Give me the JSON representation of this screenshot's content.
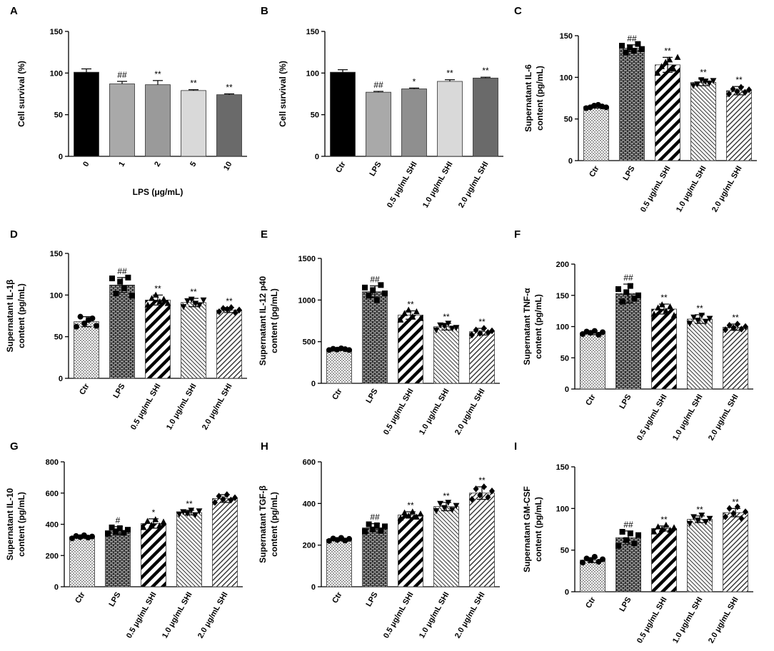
{
  "figure_title": "Figure panels A–I",
  "chart_data": [
    {
      "panel": "A",
      "type": "bar",
      "ylabel_lines": [
        "Cell survival (%)"
      ],
      "xlabel": "LPS (μg/mL)",
      "categories": [
        "0",
        "1",
        "2",
        "5",
        "10"
      ],
      "values": [
        101,
        87,
        86,
        79,
        74
      ],
      "errors": [
        4,
        3,
        5,
        1,
        1
      ],
      "annotations": [
        "",
        "##",
        "**",
        "**",
        "**"
      ],
      "yticks": [
        0,
        50,
        100,
        150
      ],
      "ylim": [
        0,
        150
      ],
      "fills": [
        "black",
        "#a9a9a9",
        "#9a9a9a",
        "#d9d9d9",
        "#6a6a6a"
      ]
    },
    {
      "panel": "B",
      "type": "bar",
      "ylabel_lines": [
        "Cell survival (%)"
      ],
      "xlabel": "",
      "categories": [
        "Ctr",
        "LPS",
        "0.5 μg/mL SHI",
        "1.0 μg/mL SHI",
        "2.0 μg/mL SHI"
      ],
      "values": [
        101,
        77,
        81,
        90,
        94
      ],
      "errors": [
        3,
        1,
        1,
        2,
        1
      ],
      "annotations": [
        "",
        "##",
        "*",
        "**",
        "**"
      ],
      "yticks": [
        0,
        50,
        100,
        150
      ],
      "ylim": [
        0,
        150
      ],
      "fills": [
        "black",
        "#a9a9a9",
        "#8f8f8f",
        "#d9d9d9",
        "#6a6a6a"
      ]
    },
    {
      "panel": "C",
      "type": "bar",
      "ylabel_lines": [
        "Supernatant IL-6",
        "content (pg/mL)"
      ],
      "xlabel": "",
      "categories": [
        "Ctr",
        "LPS",
        "0.5 μg/mL SHI",
        "1.0 μg/mL SHI",
        "2.0 μg/mL SHI"
      ],
      "values": [
        65,
        135,
        115,
        94,
        84
      ],
      "errors": [
        2,
        4,
        9,
        4,
        5
      ],
      "annotations": [
        "",
        "##",
        "**",
        "**",
        "**"
      ],
      "yticks": [
        0,
        50,
        100,
        150
      ],
      "ylim": [
        0,
        150
      ],
      "fills": [
        "url(#pat-dots)",
        "url(#pat-brick)",
        "url(#pat-thick)",
        "url(#pat-fine)",
        "url(#pat-medium)"
      ],
      "points": [
        [
          63,
          64,
          66,
          67,
          65,
          64
        ],
        [
          138,
          130,
          136,
          132,
          140,
          134
        ],
        [
          105,
          113,
          118,
          121,
          110,
          124
        ],
        [
          90,
          92,
          97,
          95,
          93,
          96
        ],
        [
          80,
          86,
          83,
          88,
          82,
          85
        ]
      ]
    },
    {
      "panel": "D",
      "type": "bar",
      "ylabel_lines": [
        "Supernatant IL-1β",
        "content (pg/mL)"
      ],
      "xlabel": "",
      "categories": [
        "Ctr",
        "LPS",
        "0.5 μg/mL SHI",
        "1.0 μg/mL SHI",
        "2.0 μg/mL SHI"
      ],
      "values": [
        68,
        112,
        94,
        91,
        82
      ],
      "errors": [
        6,
        9,
        6,
        5,
        3
      ],
      "annotations": [
        "",
        "##",
        "**",
        "**",
        "**"
      ],
      "yticks": [
        0,
        50,
        100,
        150
      ],
      "ylim": [
        0,
        150
      ],
      "fills": [
        "url(#pat-dots)",
        "url(#pat-brick)",
        "url(#pat-thick)",
        "url(#pat-fine)",
        "url(#pat-medium)"
      ],
      "points": [
        [
          62,
          74,
          66,
          70,
          72,
          63
        ],
        [
          120,
          102,
          116,
          108,
          121,
          99
        ],
        [
          88,
          96,
          100,
          92,
          95,
          90
        ],
        [
          86,
          93,
          95,
          90,
          88,
          94
        ],
        [
          80,
          84,
          83,
          85,
          79,
          82
        ]
      ]
    },
    {
      "panel": "E",
      "type": "bar",
      "ylabel_lines": [
        "Supernatant IL-12 p40",
        "content (pg/mL)"
      ],
      "xlabel": "",
      "categories": [
        "Ctr",
        "LPS",
        "0.5 μg/mL SHI",
        "1.0 μg/mL SHI",
        "2.0 μg/mL SHI"
      ],
      "values": [
        410,
        1100,
        820,
        680,
        620
      ],
      "errors": [
        15,
        70,
        50,
        40,
        40
      ],
      "annotations": [
        "",
        "##",
        "**",
        "**",
        "**"
      ],
      "yticks": [
        0,
        500,
        1000,
        1500
      ],
      "ylim": [
        0,
        1500
      ],
      "fills": [
        "url(#pat-dots)",
        "url(#pat-brick)",
        "url(#pat-thick)",
        "url(#pat-fine)",
        "url(#pat-medium)"
      ],
      "points": [
        [
          400,
          415,
          405,
          420,
          410,
          400
        ],
        [
          1150,
          1050,
          1120,
          1000,
          1180,
          1080
        ],
        [
          760,
          840,
          880,
          800,
          860,
          780
        ],
        [
          640,
          700,
          690,
          720,
          660,
          670
        ],
        [
          580,
          640,
          600,
          660,
          610,
          630
        ]
      ]
    },
    {
      "panel": "F",
      "type": "bar",
      "ylabel_lines": [
        "Supernatant TNF-α",
        "content (pg/mL)"
      ],
      "xlabel": "",
      "categories": [
        "Ctr",
        "LPS",
        "0.5 μg/mL SHI",
        "1.0 μg/mL SHI",
        "2.0 μg/mL SHI"
      ],
      "values": [
        90,
        153,
        128,
        112,
        99
      ],
      "errors": [
        3,
        15,
        8,
        7,
        5
      ],
      "annotations": [
        "",
        "##",
        "**",
        "**",
        "**"
      ],
      "yticks": [
        0,
        50,
        100,
        150,
        200
      ],
      "ylim": [
        0,
        200
      ],
      "fills": [
        "url(#pat-dots)",
        "url(#pat-brick)",
        "url(#pat-thick)",
        "url(#pat-fine)",
        "url(#pat-medium)"
      ],
      "points": [
        [
          88,
          92,
          90,
          93,
          87,
          91
        ],
        [
          160,
          140,
          155,
          165,
          145,
          150
        ],
        [
          120,
          130,
          135,
          125,
          132,
          118
        ],
        [
          105,
          115,
          110,
          118,
          108,
          113
        ],
        [
          95,
          102,
          98,
          104,
          96,
          100
        ]
      ]
    },
    {
      "panel": "G",
      "type": "bar",
      "ylabel_lines": [
        "Supernatant IL-10",
        "content (pg/mL)"
      ],
      "xlabel": "",
      "categories": [
        "Ctr",
        "LPS",
        "0.5 μg/mL SHI",
        "1.0 μg/mL SHI",
        "2.0 μg/mL SHI"
      ],
      "values": [
        320,
        360,
        405,
        475,
        565
      ],
      "errors": [
        10,
        25,
        30,
        15,
        25
      ],
      "annotations": [
        "",
        "#",
        "*",
        "**",
        ""
      ],
      "yticks": [
        0,
        200,
        400,
        600,
        800
      ],
      "ylim": [
        0,
        800
      ],
      "fills": [
        "url(#pat-dots)",
        "url(#pat-brick)",
        "url(#pat-thick)",
        "url(#pat-fine)",
        "url(#pat-medium)"
      ],
      "points": [
        [
          310,
          325,
          318,
          330,
          315,
          322
        ],
        [
          340,
          380,
          355,
          375,
          345,
          365
        ],
        [
          380,
          420,
          395,
          430,
          390,
          415
        ],
        [
          465,
          480,
          470,
          490,
          460,
          485
        ],
        [
          540,
          580,
          560,
          590,
          555,
          570
        ]
      ]
    },
    {
      "panel": "H",
      "type": "bar",
      "ylabel_lines": [
        "Supernatant TGF-β",
        "content (pg/mL)"
      ],
      "xlabel": "",
      "categories": [
        "Ctr",
        "LPS",
        "0.5 μg/mL SHI",
        "1.0 μg/mL SHI",
        "2.0 μg/mL SHI"
      ],
      "values": [
        228,
        283,
        345,
        385,
        450
      ],
      "errors": [
        8,
        20,
        15,
        20,
        30
      ],
      "annotations": [
        "",
        "##",
        "**",
        "**",
        "**"
      ],
      "yticks": [
        0,
        200,
        400,
        600
      ],
      "ylim": [
        0,
        600
      ],
      "fills": [
        "url(#pat-dots)",
        "url(#pat-brick)",
        "url(#pat-thick)",
        "url(#pat-fine)",
        "url(#pat-medium)"
      ],
      "points": [
        [
          220,
          232,
          225,
          235,
          222,
          230
        ],
        [
          265,
          300,
          275,
          295,
          270,
          290
        ],
        [
          330,
          355,
          340,
          360,
          335,
          350
        ],
        [
          365,
          400,
          380,
          405,
          370,
          390
        ],
        [
          420,
          470,
          440,
          480,
          430,
          460
        ]
      ]
    },
    {
      "panel": "I",
      "type": "bar",
      "ylabel_lines": [
        "Supernatant GM-CSF",
        "content (pg/mL)"
      ],
      "xlabel": "",
      "categories": [
        "Ctr",
        "LPS",
        "0.5 μg/mL SHI",
        "1.0 μg/mL SHI",
        "2.0 μg/mL SHI"
      ],
      "values": [
        38,
        65,
        76,
        87,
        95
      ],
      "errors": [
        3,
        8,
        3,
        4,
        5
      ],
      "annotations": [
        "",
        "##",
        "**",
        "**",
        "**"
      ],
      "yticks": [
        0,
        50,
        100,
        150
      ],
      "ylim": [
        0,
        150
      ],
      "fills": [
        "url(#pat-dots)",
        "url(#pat-brick)",
        "url(#pat-thick)",
        "url(#pat-fine)",
        "url(#pat-medium)"
      ],
      "points": [
        [
          35,
          40,
          38,
          42,
          36,
          39
        ],
        [
          55,
          72,
          62,
          70,
          58,
          68
        ],
        [
          72,
          78,
          75,
          80,
          74,
          77
        ],
        [
          82,
          90,
          86,
          92,
          84,
          88
        ],
        [
          90,
          100,
          94,
          102,
          88,
          96
        ]
      ]
    }
  ]
}
